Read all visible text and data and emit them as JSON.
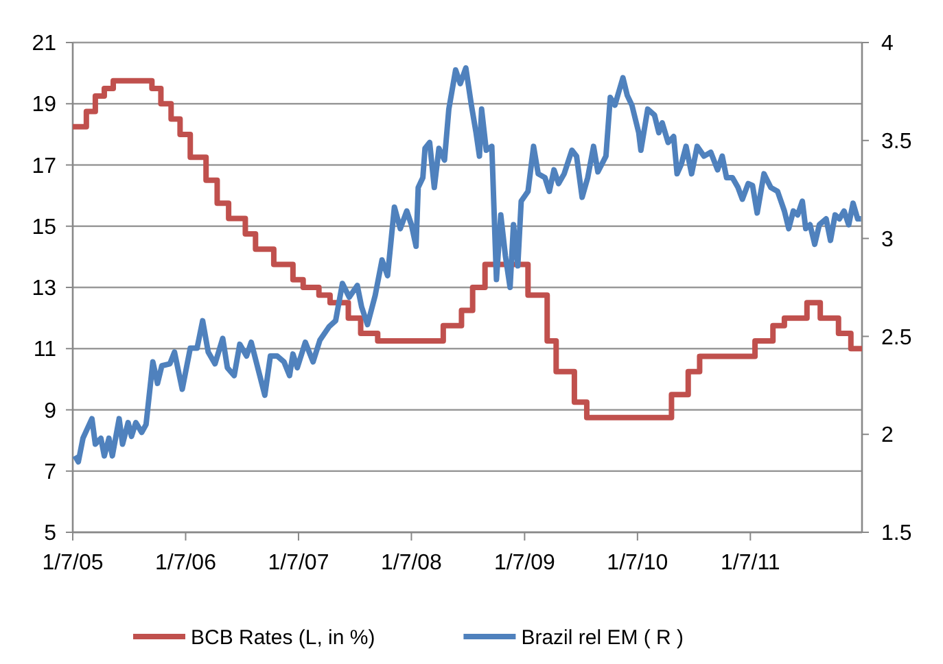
{
  "chart_data": {
    "type": "line",
    "xlim": [
      "2005-01-07",
      "2012-01-03"
    ],
    "xticks": [
      {
        "value": "2005-01-07",
        "label": "1/7/05"
      },
      {
        "value": "2006-01-07",
        "label": "1/7/06"
      },
      {
        "value": "2007-01-07",
        "label": "1/7/07"
      },
      {
        "value": "2008-01-07",
        "label": "1/7/08"
      },
      {
        "value": "2009-01-07",
        "label": "1/7/09"
      },
      {
        "value": "2010-01-07",
        "label": "1/7/10"
      },
      {
        "value": "2011-01-07",
        "label": "1/7/11"
      }
    ],
    "ylim": [
      5,
      21
    ],
    "yticks": [
      5,
      7,
      9,
      11,
      13,
      15,
      17,
      19,
      21
    ],
    "y2lim": [
      1.5,
      4
    ],
    "y2ticks": [
      1.5,
      2,
      2.5,
      3,
      3.5,
      4
    ],
    "grid": "y",
    "legend": "bottom",
    "marker": "none",
    "line_style": "solid",
    "series": [
      {
        "name": "BCB Rates (L, in %)",
        "type": "step",
        "color": "#c0504d",
        "x": [
          "2005-01-07",
          "2005-02-20",
          "2005-03-21",
          "2005-04-19",
          "2005-05-18",
          "2005-09-20",
          "2005-10-19",
          "2005-11-21",
          "2005-12-20",
          "2006-01-22",
          "2006-03-14",
          "2006-04-19",
          "2006-05-26",
          "2006-07-19",
          "2006-08-21",
          "2006-10-19",
          "2006-12-20",
          "2007-01-22",
          "2007-03-14",
          "2007-04-19",
          "2007-06-17",
          "2007-07-27",
          "2007-09-20",
          "2008-04-19",
          "2008-06-17",
          "2008-07-23",
          "2008-09-01",
          "2009-01-18",
          "2009-03-21",
          "2009-04-19",
          "2009-06-17",
          "2009-07-27",
          "2010-04-27",
          "2010-06-20",
          "2010-07-27",
          "2011-01-22",
          "2011-03-21",
          "2011-04-27",
          "2011-07-09",
          "2011-08-21",
          "2011-10-19",
          "2011-11-28",
          "2012-01-03"
        ],
        "values": [
          18.25,
          18.75,
          19.25,
          19.5,
          19.75,
          19.5,
          19,
          18.5,
          18,
          17.25,
          16.5,
          15.75,
          15.25,
          14.75,
          14.25,
          13.75,
          13.25,
          13,
          12.75,
          12.5,
          12,
          11.5,
          11.25,
          11.75,
          12.25,
          13,
          13.75,
          12.75,
          11.25,
          10.25,
          9.25,
          8.75,
          9.5,
          10.25,
          10.75,
          11.25,
          11.75,
          12,
          12.5,
          12,
          11.5,
          11,
          11
        ]
      },
      {
        "name": "Brazil rel EM ( R )",
        "type": "line",
        "axis": "y2",
        "color": "#4f81bd",
        "x": [
          "2005-01-14",
          "2005-01-25",
          "2005-02-09",
          "2005-03-10",
          "2005-03-21",
          "2005-04-08",
          "2005-04-19",
          "2005-05-04",
          "2005-05-15",
          "2005-06-06",
          "2005-06-17",
          "2005-07-05",
          "2005-07-16",
          "2005-07-30",
          "2005-08-18",
          "2005-09-01",
          "2005-09-23",
          "2005-10-08",
          "2005-10-22",
          "2005-11-17",
          "2005-12-02",
          "2005-12-27",
          "2006-01-22",
          "2006-02-13",
          "2006-03-03",
          "2006-03-21",
          "2006-04-12",
          "2006-05-07",
          "2006-05-22",
          "2006-06-13",
          "2006-07-01",
          "2006-07-23",
          "2006-08-07",
          "2006-08-25",
          "2006-09-20",
          "2006-10-08",
          "2006-10-30",
          "2006-11-21",
          "2006-12-09",
          "2006-12-20",
          "2007-01-03",
          "2007-01-29",
          "2007-02-23",
          "2007-03-17",
          "2007-04-16",
          "2007-05-07",
          "2007-05-29",
          "2007-06-20",
          "2007-07-16",
          "2007-07-30",
          "2007-08-18",
          "2007-09-12",
          "2007-10-04",
          "2007-10-22",
          "2007-11-13",
          "2007-12-02",
          "2007-12-23",
          "2008-01-07",
          "2008-01-22",
          "2008-01-29",
          "2008-02-13",
          "2008-02-20",
          "2008-03-06",
          "2008-03-21",
          "2008-04-05",
          "2008-04-23",
          "2008-05-07",
          "2008-05-29",
          "2008-06-13",
          "2008-07-01",
          "2008-07-19",
          "2008-08-03",
          "2008-08-14",
          "2008-08-21",
          "2008-09-05",
          "2008-09-23",
          "2008-10-08",
          "2008-10-22",
          "2008-11-06",
          "2008-11-21",
          "2008-12-02",
          "2008-12-16",
          "2008-12-27",
          "2009-01-18",
          "2009-02-05",
          "2009-02-20",
          "2009-03-14",
          "2009-03-28",
          "2009-04-12",
          "2009-04-27",
          "2009-05-15",
          "2009-06-09",
          "2009-06-24",
          "2009-07-12",
          "2009-07-30",
          "2009-08-18",
          "2009-09-01",
          "2009-09-27",
          "2009-10-11",
          "2009-10-26",
          "2009-11-06",
          "2009-11-21",
          "2009-12-05",
          "2009-12-20",
          "2010-01-11",
          "2010-01-18",
          "2010-02-09",
          "2010-03-03",
          "2010-03-17",
          "2010-03-28",
          "2010-04-16",
          "2010-05-04",
          "2010-05-15",
          "2010-05-29",
          "2010-06-13",
          "2010-07-01",
          "2010-07-19",
          "2010-08-10",
          "2010-09-01",
          "2010-09-23",
          "2010-10-08",
          "2010-10-22",
          "2010-11-10",
          "2010-11-28",
          "2010-12-12",
          "2010-12-31",
          "2011-01-14",
          "2011-01-29",
          "2011-02-20",
          "2011-03-14",
          "2011-04-05",
          "2011-04-27",
          "2011-05-11",
          "2011-05-26",
          "2011-06-09",
          "2011-06-24",
          "2011-07-05",
          "2011-07-19",
          "2011-08-03",
          "2011-08-18",
          "2011-09-09",
          "2011-09-23",
          "2011-10-08",
          "2011-10-22",
          "2011-11-06",
          "2011-11-21",
          "2011-12-05",
          "2011-12-20",
          "2011-12-31"
        ],
        "values": [
          1.89,
          1.86,
          1.98,
          2.08,
          1.95,
          1.98,
          1.89,
          1.98,
          1.89,
          2.08,
          1.95,
          2.06,
          1.99,
          2.06,
          2.01,
          2.05,
          2.37,
          2.26,
          2.35,
          2.36,
          2.42,
          2.23,
          2.44,
          2.44,
          2.58,
          2.42,
          2.36,
          2.49,
          2.34,
          2.3,
          2.46,
          2.4,
          2.47,
          2.36,
          2.2,
          2.4,
          2.4,
          2.37,
          2.3,
          2.41,
          2.34,
          2.47,
          2.37,
          2.48,
          2.55,
          2.58,
          2.77,
          2.7,
          2.76,
          2.65,
          2.56,
          2.71,
          2.89,
          2.81,
          3.16,
          3.05,
          3.14,
          3.07,
          2.96,
          3.26,
          3.31,
          3.46,
          3.49,
          3.26,
          3.46,
          3.4,
          3.66,
          3.86,
          3.79,
          3.87,
          3.68,
          3.54,
          3.42,
          3.66,
          3.45,
          3.47,
          2.79,
          3.12,
          2.91,
          2.75,
          3.07,
          2.86,
          3.19,
          3.24,
          3.47,
          3.33,
          3.31,
          3.24,
          3.35,
          3.28,
          3.33,
          3.45,
          3.42,
          3.21,
          3.31,
          3.47,
          3.34,
          3.42,
          3.72,
          3.68,
          3.74,
          3.82,
          3.73,
          3.68,
          3.54,
          3.45,
          3.66,
          3.63,
          3.54,
          3.59,
          3.49,
          3.52,
          3.33,
          3.38,
          3.47,
          3.33,
          3.47,
          3.42,
          3.44,
          3.35,
          3.42,
          3.31,
          3.31,
          3.26,
          3.2,
          3.28,
          3.27,
          3.13,
          3.33,
          3.26,
          3.24,
          3.14,
          3.05,
          3.14,
          3.12,
          3.19,
          3.05,
          3.07,
          2.97,
          3.07,
          3.1,
          2.99,
          3.12,
          3.1,
          3.14,
          3.07,
          3.18,
          3.1,
          3.1
        ]
      }
    ]
  }
}
